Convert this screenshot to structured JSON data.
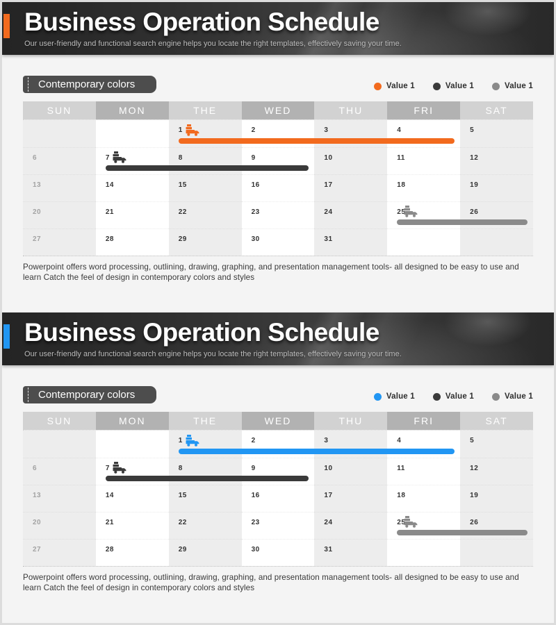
{
  "panels": [
    {
      "title": "Business Operation Schedule",
      "subtitle": "Our user-friendly and functional search engine helps you locate the right templates, effectively saving your time.",
      "badge": "Contemporary colors",
      "accent_color": "#f26a1e",
      "legend": [
        {
          "label": "Value 1",
          "color": "#f26a1e"
        },
        {
          "label": "Value 1",
          "color": "#3a3a3a"
        },
        {
          "label": "Value 1",
          "color": "#8a8a8a"
        }
      ],
      "calendar": {
        "days": [
          "SUN",
          "MON",
          "THE",
          "WED",
          "THU",
          "FRI",
          "SAT"
        ],
        "weeks": [
          [
            "",
            "",
            "1",
            "2",
            "3",
            "4",
            "5"
          ],
          [
            "6",
            "7",
            "8",
            "9",
            "10",
            "11",
            "12"
          ],
          [
            "13",
            "14",
            "15",
            "16",
            "17",
            "18",
            "19"
          ],
          [
            "20",
            "21",
            "22",
            "23",
            "24",
            "25",
            "26"
          ],
          [
            "27",
            "28",
            "29",
            "30",
            "31",
            "",
            ""
          ]
        ],
        "bars": [
          {
            "week": 0,
            "start_col": 2,
            "end_col": 5,
            "color": "#f26a1e"
          },
          {
            "week": 1,
            "start_col": 1,
            "end_col": 3,
            "color": "#3a3a3a"
          },
          {
            "week": 3,
            "start_col": 5,
            "end_col": 6,
            "color": "#8a8a8a"
          }
        ],
        "markers": [
          {
            "week": 0,
            "col": 2,
            "color": "#f26a1e"
          },
          {
            "week": 1,
            "col": 1,
            "color": "#3a3a3a"
          },
          {
            "week": 3,
            "col": 5,
            "color": "#8a8a8a"
          }
        ]
      },
      "footer": "Powerpoint offers word processing, outlining, drawing, graphing, and presentation management tools- all designed to be easy to use and learn Catch the feel of design in contemporary colors and styles"
    },
    {
      "title": "Business Operation Schedule",
      "subtitle": "Our user-friendly and functional search engine helps you locate the right templates, effectively saving your time.",
      "badge": "Contemporary colors",
      "accent_color": "#2196f3",
      "legend": [
        {
          "label": "Value 1",
          "color": "#2196f3"
        },
        {
          "label": "Value 1",
          "color": "#3a3a3a"
        },
        {
          "label": "Value 1",
          "color": "#8a8a8a"
        }
      ],
      "calendar": {
        "days": [
          "SUN",
          "MON",
          "THE",
          "WED",
          "THU",
          "FRI",
          "SAT"
        ],
        "weeks": [
          [
            "",
            "",
            "1",
            "2",
            "3",
            "4",
            "5"
          ],
          [
            "6",
            "7",
            "8",
            "9",
            "10",
            "11",
            "12"
          ],
          [
            "13",
            "14",
            "15",
            "16",
            "17",
            "18",
            "19"
          ],
          [
            "20",
            "21",
            "22",
            "23",
            "24",
            "25",
            "26"
          ],
          [
            "27",
            "28",
            "29",
            "30",
            "31",
            "",
            ""
          ]
        ],
        "bars": [
          {
            "week": 0,
            "start_col": 2,
            "end_col": 5,
            "color": "#2196f3"
          },
          {
            "week": 1,
            "start_col": 1,
            "end_col": 3,
            "color": "#3a3a3a"
          },
          {
            "week": 3,
            "start_col": 5,
            "end_col": 6,
            "color": "#8a8a8a"
          }
        ],
        "markers": [
          {
            "week": 0,
            "col": 2,
            "color": "#2196f3"
          },
          {
            "week": 1,
            "col": 1,
            "color": "#3a3a3a"
          },
          {
            "week": 3,
            "col": 5,
            "color": "#8a8a8a"
          }
        ]
      },
      "footer": "Powerpoint offers word processing, outlining, drawing, graphing, and presentation management tools- all designed to be easy to use and learn Catch the feel of design in contemporary colors and styles"
    }
  ],
  "chart_data": [
    {
      "type": "gantt",
      "title": "Business Operation Schedule",
      "section_label": "Contemporary colors",
      "calendar_days": [
        "SUN",
        "MON",
        "THE",
        "WED",
        "THU",
        "FRI",
        "SAT"
      ],
      "month_start_weekday": "THE",
      "month_length": 31,
      "muted_column": "SUN",
      "series": [
        {
          "name": "Value 1",
          "color": "#f26a1e",
          "start_date": 1,
          "end_date": 4
        },
        {
          "name": "Value 1",
          "color": "#3a3a3a",
          "start_date": 7,
          "end_date": 9
        },
        {
          "name": "Value 1",
          "color": "#8a8a8a",
          "start_date": 25,
          "end_date": 26
        }
      ],
      "legend_position": "top-right"
    },
    {
      "type": "gantt",
      "title": "Business Operation Schedule",
      "section_label": "Contemporary colors",
      "calendar_days": [
        "SUN",
        "MON",
        "THE",
        "WED",
        "THU",
        "FRI",
        "SAT"
      ],
      "month_start_weekday": "THE",
      "month_length": 31,
      "muted_column": "SUN",
      "series": [
        {
          "name": "Value 1",
          "color": "#2196f3",
          "start_date": 1,
          "end_date": 4
        },
        {
          "name": "Value 1",
          "color": "#3a3a3a",
          "start_date": 7,
          "end_date": 9
        },
        {
          "name": "Value 1",
          "color": "#8a8a8a",
          "start_date": 25,
          "end_date": 26
        }
      ],
      "legend_position": "top-right"
    }
  ]
}
